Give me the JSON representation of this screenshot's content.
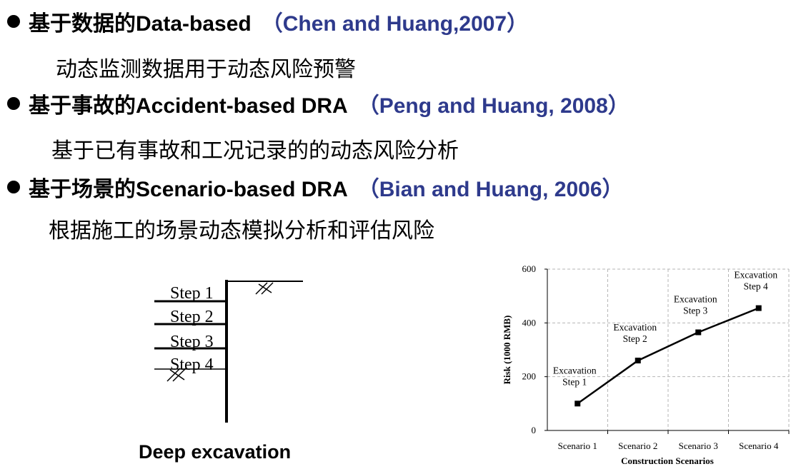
{
  "bullets": [
    {
      "heading": "基于数据的Data-based",
      "citation": "（Chen and Huang,2007）",
      "description": "动态监测数据用于动态风险预警"
    },
    {
      "heading": "基于事故的Accident-based DRA",
      "citation": "（Peng and Huang, 2008）",
      "description": "基于已有事故和工况记录的的动态风险分析"
    },
    {
      "heading": "基于场景的Scenario-based DRA",
      "citation": "（Bian and Huang, 2006）",
      "description": "根据施工的场景动态模拟分析和评估风险"
    }
  ],
  "diagram": {
    "steps": [
      "Step 1",
      "Step 2",
      "Step 3",
      "Step 4"
    ],
    "caption": "Deep excavation"
  },
  "chart_data": {
    "type": "line",
    "categories": [
      "Scenario 1",
      "Scenario 2",
      "Scenario 3",
      "Scenario 4"
    ],
    "series": [
      {
        "values": [
          100,
          260,
          365,
          455
        ]
      }
    ],
    "annotations": [
      [
        "Excavation",
        "Step 1"
      ],
      [
        "Excavation",
        "Step 2"
      ],
      [
        "Excavation",
        "Step 3"
      ],
      [
        "Excavation",
        "Step 4"
      ]
    ],
    "xlabel": "Construction Scenarios",
    "ylabel": "Risk (1000 RMB)",
    "yticks": [
      "0",
      "200",
      "400",
      "600"
    ],
    "ylim": [
      0,
      600
    ],
    "grid": true,
    "line_color": "#000000"
  }
}
